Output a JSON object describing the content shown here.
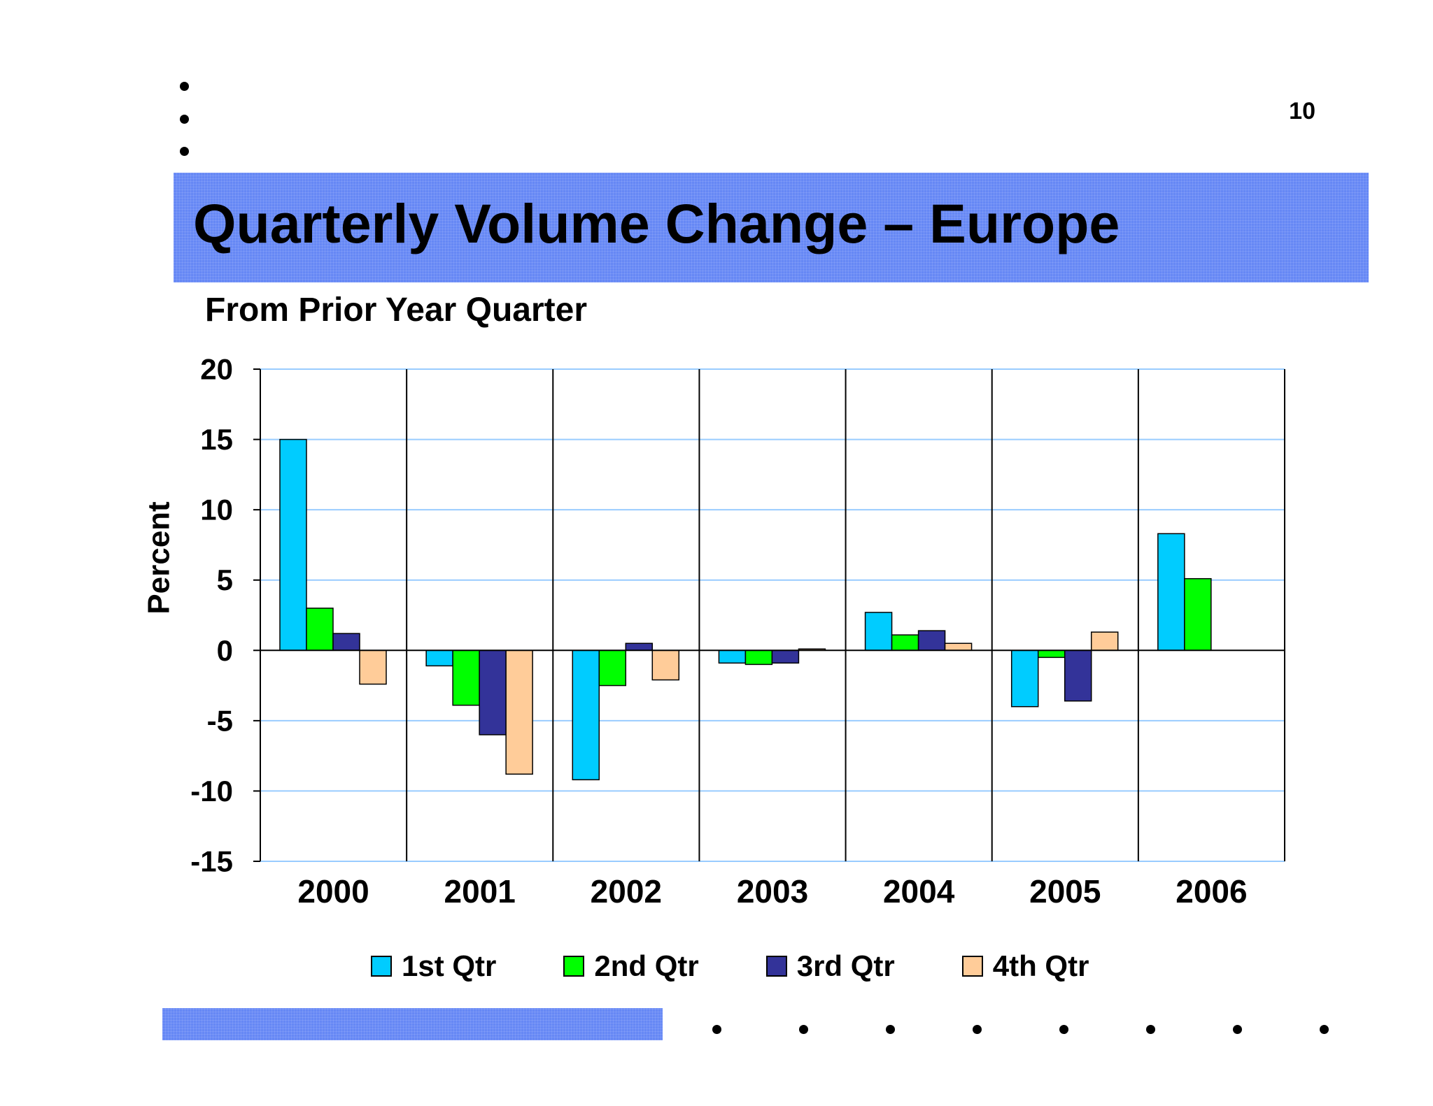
{
  "slide": {
    "page_number": "10",
    "title": "Quarterly Volume Change – Europe",
    "subtitle": "From Prior Year Quarter"
  },
  "colors": {
    "band": "#6688f5",
    "q1": "#00ccff",
    "q2": "#00ff00",
    "q3": "#333399",
    "q4": "#ffcc99",
    "gridline": "#99ccff"
  },
  "chart_data": {
    "type": "bar",
    "title": "Quarterly Volume Change – Europe",
    "subtitle": "From Prior Year Quarter",
    "xlabel": "",
    "ylabel": "Percent",
    "ylim": [
      -15,
      20
    ],
    "yticks": [
      "20",
      "15",
      "10",
      "5",
      "0",
      "-5",
      "-10",
      "-15"
    ],
    "grid": "horizontal",
    "legend_position": "bottom",
    "categories": [
      "2000",
      "2001",
      "2002",
      "2003",
      "2004",
      "2005",
      "2006"
    ],
    "series": [
      {
        "name": "1st Qtr",
        "color": "#00ccff",
        "values": [
          15.0,
          -1.1,
          -9.2,
          -0.9,
          2.7,
          -4.0,
          8.3
        ]
      },
      {
        "name": "2nd Qtr",
        "color": "#00ff00",
        "values": [
          3.0,
          -3.9,
          -2.5,
          -1.0,
          1.1,
          -0.5,
          5.1
        ]
      },
      {
        "name": "3rd Qtr",
        "color": "#333399",
        "values": [
          1.2,
          -6.0,
          0.5,
          -0.9,
          1.4,
          -3.6,
          null
        ]
      },
      {
        "name": "4th Qtr",
        "color": "#ffcc99",
        "values": [
          -2.4,
          -8.8,
          -2.1,
          0.1,
          0.5,
          1.3,
          null
        ]
      }
    ]
  }
}
